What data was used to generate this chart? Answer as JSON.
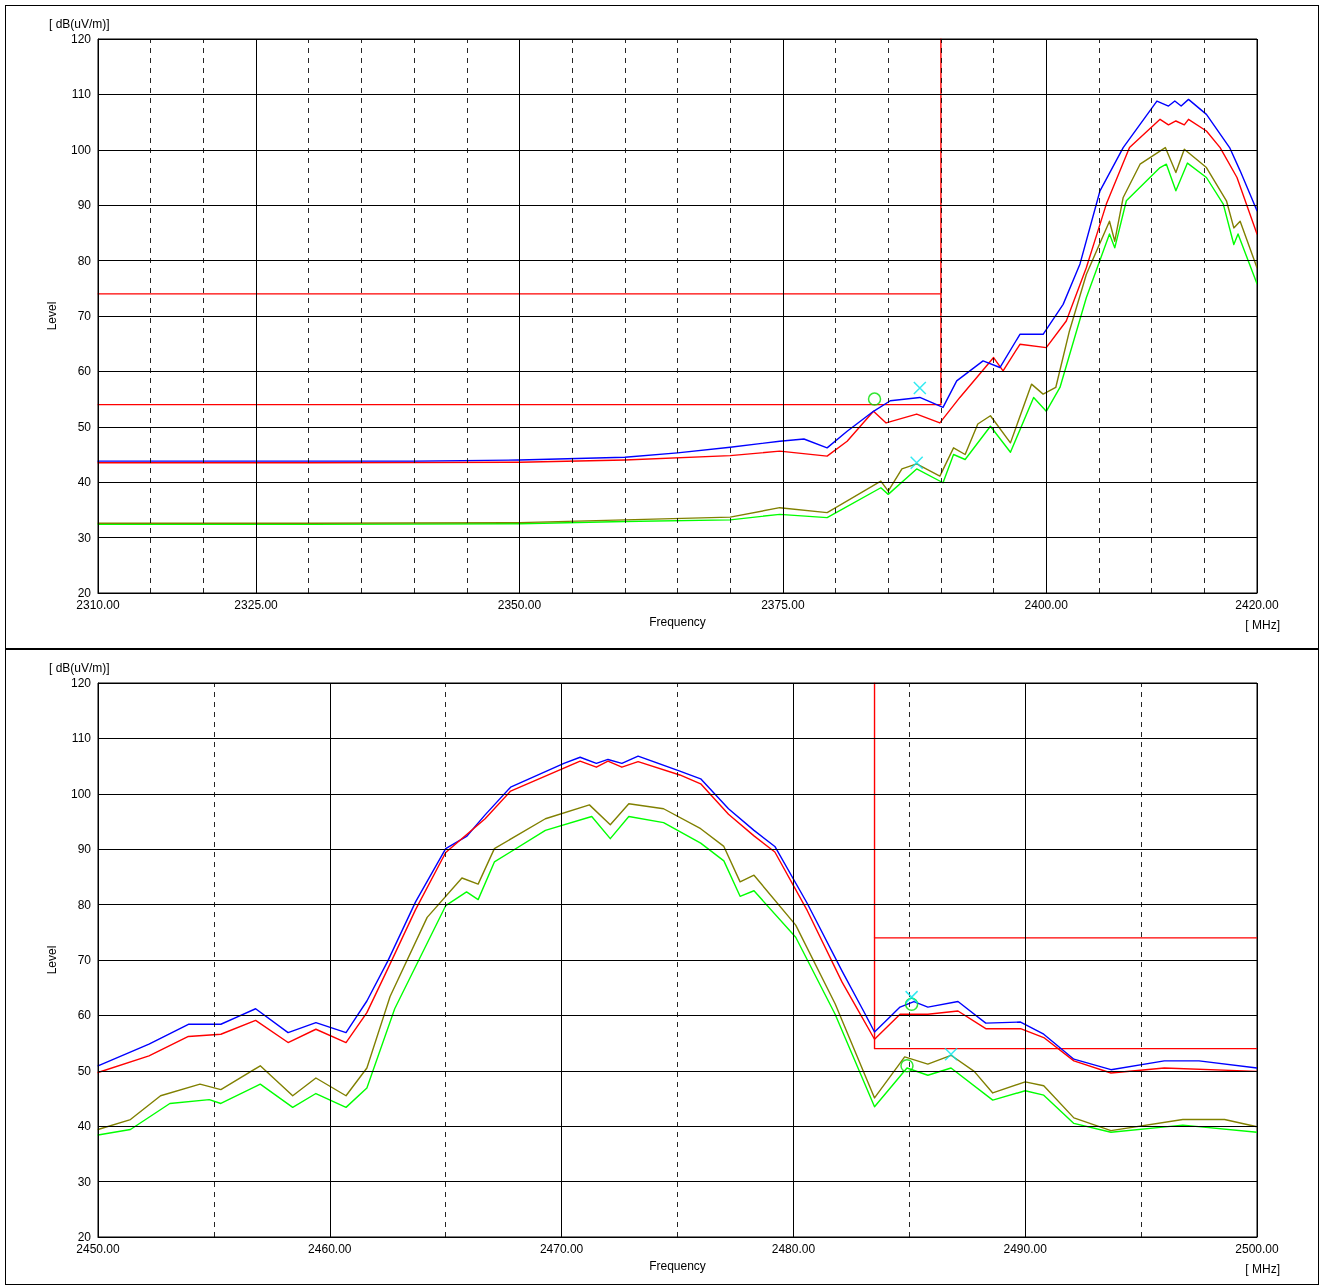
{
  "chart_data": [
    {
      "type": "line",
      "xlabel": "Frequency",
      "ylabel": "Level",
      "annotations": [
        "[ dB(uV/m)]",
        "[ MHz]"
      ],
      "xlim": [
        2310,
        2420
      ],
      "xticks": [
        {
          "value": 2310,
          "label": "2310.00"
        },
        {
          "value": 2315,
          "label": null
        },
        {
          "value": 2320,
          "label": null
        },
        {
          "value": 2325,
          "label": "2325.00"
        },
        {
          "value": 2330,
          "label": null
        },
        {
          "value": 2335,
          "label": null
        },
        {
          "value": 2340,
          "label": null
        },
        {
          "value": 2345,
          "label": null
        },
        {
          "value": 2350,
          "label": "2350.00"
        },
        {
          "value": 2355,
          "label": null
        },
        {
          "value": 2360,
          "label": null
        },
        {
          "value": 2365,
          "label": null
        },
        {
          "value": 2370,
          "label": null
        },
        {
          "value": 2375,
          "label": "2375.00"
        },
        {
          "value": 2380,
          "label": null
        },
        {
          "value": 2385,
          "label": null
        },
        {
          "value": 2390,
          "label": null
        },
        {
          "value": 2395,
          "label": null
        },
        {
          "value": 2400,
          "label": "2400.00"
        },
        {
          "value": 2405,
          "label": null
        },
        {
          "value": 2410,
          "label": null
        },
        {
          "value": 2415,
          "label": null
        },
        {
          "value": 2420,
          "label": "2420.00"
        }
      ],
      "ylim": [
        20,
        120
      ],
      "yticks": [
        20,
        30,
        40,
        50,
        60,
        70,
        80,
        90,
        100,
        110,
        120
      ],
      "grid": true,
      "marker": "none",
      "series": [
        {
          "color": "#ff0000",
          "x": [
            2310,
            2390,
            2390
          ],
          "values": [
            54,
            54,
            120
          ]
        },
        {
          "color": "#ff0000",
          "x": [
            2310,
            2390
          ],
          "values": [
            74,
            74
          ]
        },
        {
          "color": "#ff0000",
          "x": [
            2310,
            2330,
            2350,
            2360,
            2370,
            2374.7,
            2379.2,
            2381.1,
            2383.6,
            2384.8,
            2387.7,
            2389.9,
            2391.8,
            2395,
            2395.9,
            2397.5,
            2400,
            2401.9,
            2403.8,
            2405.7,
            2407.9,
            2410.8,
            2411.6,
            2412.3,
            2413.1,
            2413.5,
            2415.2,
            2416.5,
            2418.1,
            2420
          ],
          "values": [
            43.5,
            43.5,
            43.6,
            44,
            44.8,
            45.6,
            44.7,
            47.4,
            52.8,
            50.7,
            52.3,
            50.7,
            55.3,
            62.5,
            60.1,
            64.9,
            64.3,
            69.1,
            78.7,
            90.2,
            100.4,
            105.5,
            104.5,
            105.2,
            104.5,
            105.5,
            103.4,
            100.4,
            95,
            84.8
          ]
        },
        {
          "color": "#0000ff",
          "x": [
            2310,
            2320,
            2330,
            2340,
            2350,
            2360,
            2365,
            2370,
            2374.7,
            2377,
            2379.2,
            2381.1,
            2383.6,
            2385.2,
            2388,
            2390.2,
            2391.5,
            2394,
            2395.6,
            2397.5,
            2399.7,
            2401.6,
            2403.2,
            2405.1,
            2407.3,
            2410.5,
            2411.6,
            2412.2,
            2412.8,
            2413.5,
            2415.2,
            2417.4,
            2418.4,
            2420
          ],
          "values": [
            43.8,
            43.8,
            43.8,
            43.8,
            44,
            44.5,
            45.3,
            46.3,
            47.4,
            47.8,
            46.2,
            49.2,
            52.8,
            54.7,
            55.3,
            53.5,
            58.3,
            61.9,
            60.7,
            66.7,
            66.7,
            72.1,
            79.4,
            92.6,
            100.4,
            108.8,
            107.9,
            108.8,
            107.9,
            109.1,
            106.4,
            100.4,
            96.2,
            89
          ]
        },
        {
          "color": "#00ff00",
          "x": [
            2310,
            2330,
            2350,
            2360,
            2370,
            2374.7,
            2379.2,
            2384.3,
            2385,
            2387.7,
            2390.2,
            2391.2,
            2392.3,
            2394.7,
            2396.6,
            2398.8,
            2400,
            2401.3,
            2403.8,
            2406,
            2406.5,
            2407.6,
            2410.8,
            2411.4,
            2412.3,
            2413.4,
            2415.2,
            2416.8,
            2417.8,
            2418.2,
            2420
          ],
          "values": [
            32.4,
            32.4,
            32.5,
            32.9,
            33.2,
            34.2,
            33.6,
            39,
            37.8,
            42.4,
            39.9,
            45,
            44.1,
            50.1,
            45.4,
            55.3,
            52.8,
            57.1,
            73.3,
            84.8,
            82.3,
            90.8,
            96.8,
            97.4,
            92.6,
            97.6,
            95,
            90.2,
            82.9,
            84.8,
            75.8
          ]
        },
        {
          "color": "#808000",
          "x": [
            2310,
            2330,
            2350,
            2360,
            2370,
            2374.7,
            2379.2,
            2384.3,
            2385,
            2386.3,
            2387.7,
            2389.9,
            2391.2,
            2392.3,
            2393.5,
            2394.7,
            2396.6,
            2398.6,
            2399.7,
            2400.9,
            2402.2,
            2403.8,
            2406,
            2406.5,
            2407.3,
            2408.9,
            2411.3,
            2412.3,
            2413.1,
            2415.2,
            2417.1,
            2417.8,
            2418.4,
            2420
          ],
          "values": [
            32.6,
            32.6,
            32.7,
            33.2,
            33.7,
            35.4,
            34.5,
            40.2,
            38.4,
            42.4,
            43.3,
            41.1,
            46.2,
            45,
            50.5,
            52,
            47.1,
            57.7,
            55.9,
            57.1,
            67.3,
            77.5,
            87.1,
            83.5,
            91.4,
            97.4,
            100.4,
            95.9,
            100.1,
            96.8,
            90.8,
            85.9,
            87.1,
            78.7
          ]
        },
        {
          "type": "scatter",
          "marker": "circle",
          "color": "#00e000",
          "x": [
            2383.7
          ],
          "values": [
            55
          ]
        },
        {
          "type": "scatter",
          "marker": "cross",
          "color": "#00e5ee",
          "x": [
            2388,
            2387.7
          ],
          "values": [
            57,
            43.5
          ]
        }
      ]
    },
    {
      "type": "line",
      "xlabel": "Frequency",
      "ylabel": "Level",
      "annotations": [
        "[ dB(uV/m)]",
        "[ MHz]"
      ],
      "xlim": [
        2450,
        2500
      ],
      "xticks": [
        {
          "value": 2450,
          "label": "2450.00"
        },
        {
          "value": 2455,
          "label": null
        },
        {
          "value": 2460,
          "label": "2460.00"
        },
        {
          "value": 2465,
          "label": null
        },
        {
          "value": 2470,
          "label": "2470.00"
        },
        {
          "value": 2475,
          "label": null
        },
        {
          "value": 2480,
          "label": "2480.00"
        },
        {
          "value": 2485,
          "label": null
        },
        {
          "value": 2490,
          "label": "2490.00"
        },
        {
          "value": 2495,
          "label": null
        },
        {
          "value": 2500,
          "label": "2500.00"
        }
      ],
      "ylim": [
        20,
        120
      ],
      "yticks": [
        20,
        30,
        40,
        50,
        60,
        70,
        80,
        90,
        100,
        110,
        120
      ],
      "grid": true,
      "marker": "none",
      "series": [
        {
          "color": "#ff0000",
          "x": [
            2483.5,
            2483.5,
            2500
          ],
          "values": [
            120,
            54,
            54
          ]
        },
        {
          "color": "#ff0000",
          "x": [
            2483.5,
            2500
          ],
          "values": [
            74,
            74
          ]
        },
        {
          "color": "#0000ff",
          "x": [
            2450,
            2452.2,
            2453.9,
            2455.3,
            2456.8,
            2458.2,
            2459.4,
            2460.7,
            2461.6,
            2462.5,
            2463.7,
            2465,
            2465.9,
            2466.7,
            2467.8,
            2470.1,
            2470.8,
            2471.5,
            2472,
            2472.6,
            2473.3,
            2475.1,
            2476,
            2477.2,
            2478.3,
            2479.2,
            2480.6,
            2482.1,
            2483.1,
            2483.5,
            2484.6,
            2485.2,
            2485.8,
            2487.1,
            2488.3,
            2489.8,
            2490.8,
            2492.1,
            2493.7,
            2496,
            2497.5,
            2500
          ],
          "values": [
            50.9,
            54.8,
            58.4,
            58.4,
            61.2,
            56.9,
            58.7,
            56.9,
            62.6,
            69.8,
            80.5,
            90.1,
            92.3,
            96.2,
            101.2,
            105.5,
            106.6,
            105.5,
            106.2,
            105.5,
            106.8,
            104.1,
            102.7,
            97.3,
            93.4,
            90.5,
            80.2,
            68,
            60.2,
            57,
            61.5,
            62.5,
            61.5,
            62.5,
            58.6,
            58.8,
            56.6,
            52.1,
            50.2,
            51.8,
            51.8,
            50.5
          ]
        },
        {
          "color": "#ff0000",
          "x": [
            2450,
            2452.2,
            2453.9,
            2455.3,
            2456.8,
            2458.2,
            2459.4,
            2460.7,
            2461.6,
            2462.5,
            2463.7,
            2465,
            2466.7,
            2467.8,
            2470.8,
            2471.5,
            2472,
            2472.6,
            2473.3,
            2475.1,
            2476,
            2477.2,
            2478.3,
            2479.2,
            2480.6,
            2482.1,
            2483.5,
            2484.6,
            2485.8,
            2487.1,
            2488.3,
            2489.8,
            2490.8,
            2492.1,
            2493.7,
            2496,
            2500
          ],
          "values": [
            49.7,
            52.7,
            56.2,
            56.6,
            59.1,
            55.1,
            57.5,
            55.1,
            60.5,
            68.4,
            79.1,
            89.4,
            95.5,
            100.5,
            105.9,
            104.8,
            105.9,
            104.8,
            105.8,
            103.4,
            101.8,
            96.3,
            92.4,
            89.5,
            78.9,
            66,
            55.7,
            60.2,
            60.2,
            60.8,
            57.6,
            57.6,
            56,
            51.8,
            49.6,
            50.5,
            49.9
          ]
        },
        {
          "color": "#00ff00",
          "x": [
            2450,
            2451.4,
            2453.1,
            2454.8,
            2455.3,
            2457,
            2458.4,
            2459.4,
            2460.7,
            2461.6,
            2462.8,
            2465,
            2465.9,
            2466.4,
            2467.1,
            2469.3,
            2471.3,
            2472.1,
            2472.9,
            2474.4,
            2476,
            2477,
            2477.7,
            2478.3,
            2480.1,
            2481.8,
            2483.5,
            2484.9,
            2485.8,
            2486.8,
            2488.6,
            2490,
            2490.8,
            2492.1,
            2493.7,
            2496.8,
            2500
          ],
          "values": [
            38.4,
            39.4,
            44.1,
            44.8,
            44.1,
            47.6,
            43.4,
            45.9,
            43.4,
            46.9,
            61.2,
            79.8,
            82.3,
            80.9,
            87.7,
            93.4,
            95.9,
            91.9,
            95.9,
            94.8,
            91.1,
            87.9,
            81.5,
            82.5,
            74.1,
            60.2,
            43.5,
            50.5,
            49.2,
            50.5,
            44.7,
            46.4,
            45.6,
            40.5,
            38.9,
            40.2,
            38.9
          ]
        },
        {
          "color": "#808000",
          "x": [
            2450,
            2451.4,
            2452.7,
            2454.4,
            2455.3,
            2457,
            2458.4,
            2459.4,
            2460.7,
            2461.6,
            2462.6,
            2464.2,
            2465.7,
            2466.4,
            2467.1,
            2469.3,
            2471.2,
            2472.1,
            2472.9,
            2474.4,
            2476,
            2477,
            2477.7,
            2478.3,
            2480.1,
            2481.8,
            2483.5,
            2484.8,
            2485.8,
            2486.8,
            2487.8,
            2488.6,
            2490,
            2490.8,
            2492.1,
            2493.7,
            2496.8,
            2498.6,
            2500
          ],
          "values": [
            39.4,
            41.2,
            45.5,
            47.6,
            46.6,
            50.9,
            45.5,
            48.7,
            45.5,
            50.5,
            63.4,
            77.7,
            84.8,
            83.7,
            90.1,
            95.5,
            98,
            94.4,
            98.2,
            97.3,
            93.7,
            90.5,
            84.1,
            85.3,
            76.3,
            62.1,
            45.1,
            52.5,
            51.2,
            52.8,
            49.9,
            46,
            48,
            47.3,
            41.5,
            39.2,
            41.2,
            41.2,
            39.9
          ]
        },
        {
          "type": "scatter",
          "marker": "circle",
          "color": "#00e000",
          "x": [
            2485.1,
            2484.9
          ],
          "values": [
            62,
            50.9
          ]
        },
        {
          "type": "scatter",
          "marker": "cross",
          "color": "#00e5ee",
          "x": [
            2485.1,
            2486.8
          ],
          "values": [
            63.3,
            53
          ]
        }
      ]
    }
  ]
}
